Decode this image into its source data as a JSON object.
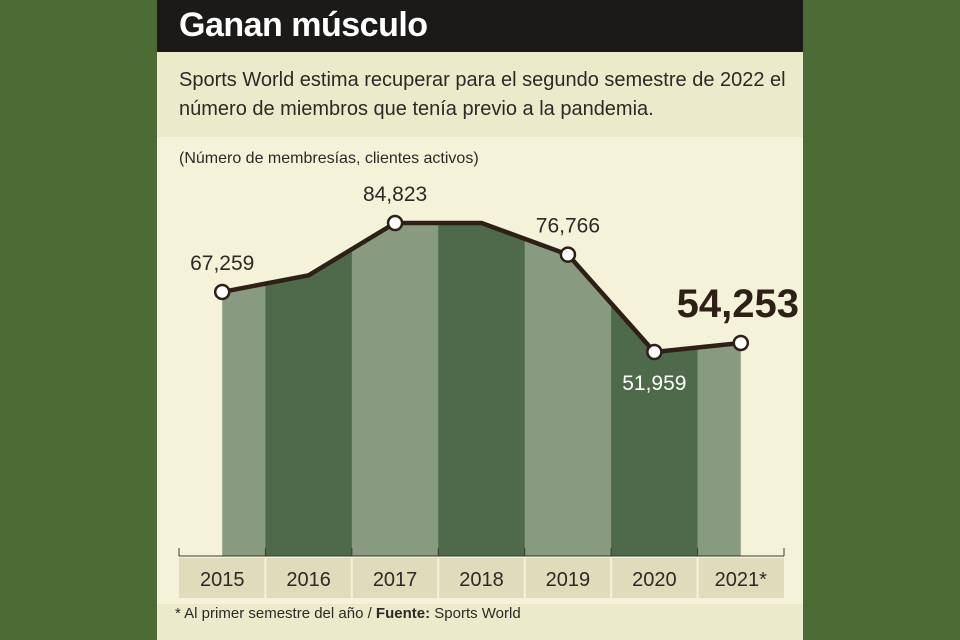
{
  "header": {
    "title": "Ganan músculo",
    "subtitle": "Sports World estima recuperar para el segundo semestre de 2022 el número de miembros que tenía previo a la pandemia."
  },
  "unit_label": "(Número de membresías, clientes activos)",
  "footnote": {
    "note": "* Al primer semestre del año / ",
    "source_label": "Fuente:",
    "source": " Sports World"
  },
  "colors": {
    "background": "#4d6b35",
    "panel": "#ebebcc",
    "title_bar": "#1c1a18",
    "column_light": "#889a80",
    "column_dark": "#4e6a4b",
    "line": "#2e1f17"
  },
  "chart_data": {
    "type": "area",
    "categories": [
      "2015",
      "2016",
      "2017",
      "2018",
      "2019",
      "2020",
      "2021*"
    ],
    "series": [
      {
        "values": [
          67259,
          71500,
          84823,
          84823,
          76766,
          51959,
          54253
        ]
      }
    ],
    "labels": [
      {
        "index": 0,
        "text": "67,259"
      },
      {
        "index": 2,
        "text": "84,823"
      },
      {
        "index": 4,
        "text": "76,766"
      },
      {
        "index": 5,
        "text": "51,959"
      },
      {
        "index": 6,
        "text": "54,253",
        "emphasis": true
      }
    ],
    "markers": [
      0,
      2,
      4,
      5,
      6
    ],
    "ylim": [
      0,
      100000
    ],
    "grid": false
  }
}
